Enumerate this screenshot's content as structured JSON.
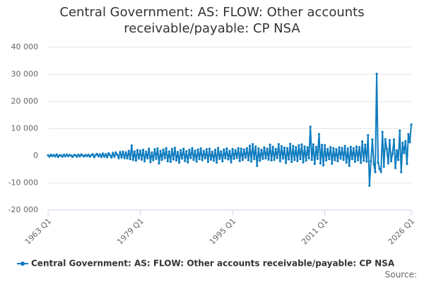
{
  "chart_data": {
    "type": "line",
    "title": "Central Government: AS: FLOW: Other accounts receivable/payable: CP NSA",
    "source": "Source:",
    "legend": "bottom",
    "grid": true,
    "ylim": [
      -20000,
      40000
    ],
    "yticks": [
      {
        "value": -20000,
        "label": "-20 000"
      },
      {
        "value": -10000,
        "label": "-10 000"
      },
      0,
      {
        "value": 10000,
        "label": "10 000"
      },
      {
        "value": 20000,
        "label": "20 000"
      },
      {
        "value": 30000,
        "label": "30 000"
      },
      {
        "value": 40000,
        "label": "40 000"
      }
    ],
    "categories": [
      "1963 Q1",
      null,
      null,
      null,
      null,
      null,
      null,
      null,
      null,
      null,
      null,
      null,
      null,
      null,
      null,
      null,
      null,
      null,
      null,
      null,
      null,
      null,
      null,
      null,
      null,
      null,
      null,
      null,
      null,
      null,
      null,
      null,
      null,
      null,
      null,
      null,
      null,
      null,
      null,
      null,
      null,
      null,
      null,
      null,
      null,
      null,
      null,
      null,
      null,
      null,
      null,
      null,
      null,
      null,
      null,
      null,
      null,
      null,
      null,
      null,
      null,
      null,
      null,
      null,
      "1979 Q1",
      null,
      null,
      null,
      null,
      null,
      null,
      null,
      null,
      null,
      null,
      null,
      null,
      null,
      null,
      null,
      null,
      null,
      null,
      null,
      null,
      null,
      null,
      null,
      null,
      null,
      null,
      null,
      null,
      null,
      null,
      null,
      null,
      null,
      null,
      null,
      null,
      null,
      null,
      null,
      null,
      null,
      null,
      null,
      null,
      null,
      null,
      null,
      null,
      null,
      null,
      null,
      null,
      null,
      null,
      null,
      null,
      null,
      null,
      null,
      null,
      null,
      null,
      null,
      "1995 Q1",
      null,
      null,
      null,
      null,
      null,
      null,
      null,
      null,
      null,
      null,
      null,
      null,
      null,
      null,
      null,
      null,
      null,
      null,
      null,
      null,
      null,
      null,
      null,
      null,
      null,
      null,
      null,
      null,
      null,
      null,
      null,
      null,
      null,
      null,
      null,
      null,
      null,
      null,
      null,
      null,
      null,
      null,
      null,
      null,
      null,
      null,
      null,
      null,
      null,
      null,
      null,
      null,
      null,
      null,
      null,
      null,
      null,
      null,
      null,
      null,
      null,
      null,
      null,
      "2011 Q1",
      null,
      null,
      null,
      null,
      null,
      null,
      null,
      null,
      null,
      null,
      null,
      null,
      null,
      null,
      null,
      null,
      null,
      null,
      null,
      null,
      null,
      null,
      null,
      null,
      null,
      null,
      null,
      null,
      null,
      null,
      null,
      null,
      null,
      null,
      null,
      null,
      null,
      null,
      null,
      null,
      null,
      null,
      null,
      null,
      null,
      null,
      null,
      null,
      null,
      null,
      null,
      null,
      null,
      null,
      null,
      null,
      null,
      null,
      null,
      "2026 Q1"
    ],
    "series": [
      {
        "name": "Central Government: AS: FLOW: Other accounts receivable/payable: CP NSA",
        "color": "#0f7cbf",
        "values": [
          200,
          -300,
          400,
          -100,
          300,
          -200,
          500,
          -400,
          200,
          100,
          -300,
          400,
          -200,
          500,
          -100,
          300,
          100,
          -400,
          300,
          200,
          -300,
          400,
          -200,
          500,
          100,
          -200,
          300,
          -100,
          400,
          -300,
          200,
          600,
          -500,
          300,
          700,
          -200,
          500,
          -400,
          800,
          -300,
          600,
          -500,
          900,
          200,
          -600,
          1000,
          -300,
          1200,
          400,
          -800,
          1300,
          -500,
          1500,
          -700,
          1100,
          -900,
          1800,
          -1200,
          3800,
          -1500,
          1600,
          -1800,
          2100,
          -1000,
          1900,
          -1400,
          2200,
          -2000,
          1500,
          -900,
          2600,
          -2300,
          1200,
          -1600,
          2400,
          -1100,
          2700,
          -2800,
          1800,
          -1500,
          2300,
          -900,
          2800,
          -2000,
          1600,
          -2200,
          2500,
          -1300,
          2900,
          -1700,
          1400,
          -2500,
          2100,
          -1000,
          2600,
          -1900,
          1700,
          -2400,
          2200,
          -800,
          2800,
          -1500,
          1900,
          -2100,
          2300,
          -1200,
          2700,
          -1600,
          1800,
          -900,
          2400,
          -2200,
          2600,
          -1400,
          1500,
          -1800,
          2200,
          -2500,
          2900,
          -1100,
          1600,
          -2000,
          2300,
          -900,
          2700,
          -1300,
          1800,
          -2400,
          2500,
          -1100,
          2100,
          -800,
          2800,
          -1900,
          2600,
          -1500,
          2300,
          -700,
          2800,
          -1600,
          3700,
          -2100,
          4300,
          -1200,
          3400,
          -3700,
          2700,
          -1800,
          2200,
          -1100,
          3100,
          -900,
          2600,
          -1400,
          4100,
          -1700,
          3300,
          -1500,
          2500,
          -800,
          4300,
          -2000,
          3500,
          -1000,
          3000,
          -2600,
          2800,
          -1300,
          4400,
          -2200,
          3600,
          -1500,
          3200,
          -1900,
          3900,
          -1200,
          4200,
          -2400,
          3400,
          -1800,
          3100,
          -900,
          10700,
          -1500,
          4200,
          -3000,
          3300,
          -1100,
          8000,
          -2800,
          4000,
          -3500,
          3900,
          -1700,
          2500,
          -1200,
          3200,
          -2900,
          2800,
          -1600,
          2400,
          -2000,
          3100,
          -1000,
          2900,
          -1500,
          3600,
          -2500,
          2700,
          -3700,
          3300,
          -1200,
          2800,
          -2200,
          3400,
          -1600,
          3200,
          -2600,
          5300,
          -1800,
          4100,
          -2100,
          7600,
          -11000,
          -2000,
          6000,
          -3000,
          -6000,
          30200,
          -2500,
          -4800,
          -5800,
          8800,
          -4000,
          6100,
          2500,
          -2800,
          5800,
          -2000,
          800,
          6000,
          -4500,
          2000,
          -1500,
          9300,
          -6000,
          4800,
          1000,
          5400,
          -3000,
          8000,
          5000,
          11500
        ]
      }
    ]
  }
}
